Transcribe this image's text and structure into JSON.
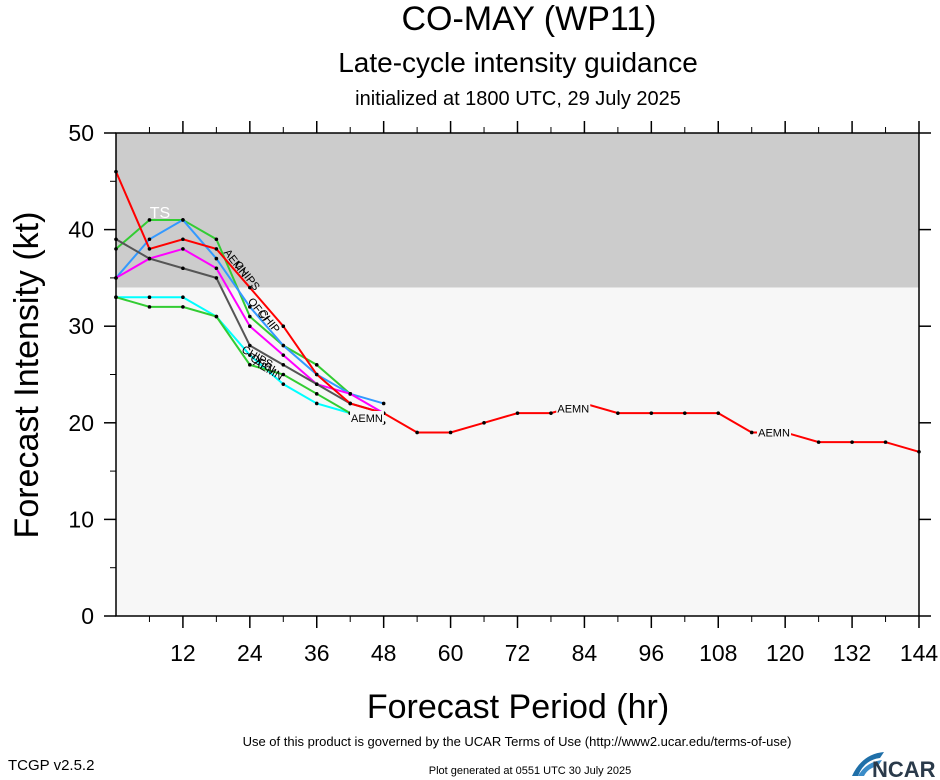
{
  "colors": {
    "ts_band": "#cccccc",
    "below_band": "#f7f7f7",
    "AEMN": "#ff0000",
    "green": "#33cc33",
    "blue": "#3399ff",
    "darkred": "#cc0000",
    "magenta": "#ff00ff",
    "gray": "#555555",
    "cyan": "#00ffff",
    "violet": "#cc88ff"
  },
  "chart_data": {
    "type": "line",
    "title": "CO-MAY (WP11)",
    "subtitle": "Late-cycle intensity guidance",
    "init_text": "initialized at 1800 UTC, 29 July 2025",
    "xlabel": "Forecast Period (hr)",
    "ylabel": "Forecast Intensity (kt)",
    "xlim": [
      0,
      144
    ],
    "ylim": [
      0,
      50
    ],
    "xticks": [
      12,
      24,
      36,
      48,
      60,
      72,
      84,
      96,
      108,
      120,
      132,
      144
    ],
    "yticks": [
      0,
      10,
      20,
      30,
      40,
      50
    ],
    "ts_threshold": 34,
    "ts_label": "TS",
    "series": [
      {
        "name": "AEMN",
        "color_key": "AEMN",
        "x": [
          0,
          6,
          12,
          18,
          24,
          30,
          36,
          42,
          48,
          54,
          60,
          66,
          72,
          78,
          84,
          90,
          96,
          102,
          108,
          114,
          120,
          126,
          132,
          138,
          144
        ],
        "y": [
          46,
          38,
          39,
          38,
          34,
          30,
          25,
          22,
          21,
          19,
          19,
          20,
          21,
          21,
          22,
          21,
          21,
          21,
          21,
          19,
          19,
          18,
          18,
          18,
          17
        ],
        "labels": [
          {
            "text": "AEMN",
            "x": 45,
            "y": 20.5
          },
          {
            "text": "AEMN",
            "x": 82,
            "y": 21.5
          },
          {
            "text": "AEMN",
            "x": 118,
            "y": 19
          }
        ]
      },
      {
        "name": "",
        "color_key": "green",
        "x": [
          0,
          6,
          12,
          18,
          24,
          30,
          36,
          42
        ],
        "y": [
          38,
          41,
          41,
          39,
          31,
          28,
          26,
          23
        ],
        "labels": []
      },
      {
        "name": "",
        "color_key": "blue",
        "x": [
          0,
          6,
          12,
          18,
          24,
          30,
          36,
          42,
          48
        ],
        "y": [
          35,
          39,
          41,
          37,
          32,
          28,
          25,
          23,
          22
        ],
        "labels": []
      },
      {
        "name": "",
        "color_key": "magenta",
        "x": [
          0,
          6,
          12,
          18,
          24,
          30,
          36,
          42,
          48
        ],
        "y": [
          35,
          37,
          38,
          36,
          30,
          27,
          24,
          23,
          21
        ],
        "labels": []
      },
      {
        "name": "",
        "color_key": "gray",
        "x": [
          0,
          6,
          12,
          18,
          24,
          30,
          36,
          42,
          48
        ],
        "y": [
          39,
          37,
          36,
          35,
          28,
          26,
          24,
          22,
          21
        ],
        "labels": []
      },
      {
        "name": "",
        "color_key": "cyan",
        "x": [
          0,
          6,
          12,
          18,
          24,
          30,
          36,
          42,
          48
        ],
        "y": [
          33,
          33,
          33,
          31,
          27,
          24,
          22,
          21,
          20
        ],
        "labels": []
      },
      {
        "name": "",
        "color_key": "green",
        "x": [
          0,
          6,
          12,
          18,
          24,
          30,
          36,
          42
        ],
        "y": [
          33,
          32,
          32,
          31,
          26,
          25,
          23,
          21
        ],
        "labels": []
      }
    ],
    "side_labels": [
      {
        "text": "AEMN",
        "x": 21,
        "y": 36.3,
        "rot": 52
      },
      {
        "text": "CHIPS",
        "x": 23,
        "y": 35.0,
        "rot": 52
      },
      {
        "text": "OFCI",
        "x": 25,
        "y": 31.5,
        "rot": 52
      },
      {
        "text": "CHIP",
        "x": 27,
        "y": 30.3,
        "rot": 52
      },
      {
        "text": "CHIPS",
        "x": 25,
        "y": 26.5,
        "rot": 30
      },
      {
        "text": "OFCI",
        "x": 26,
        "y": 25.8,
        "rot": 30
      },
      {
        "text": "AEMN",
        "x": 27,
        "y": 25.2,
        "rot": 30
      }
    ]
  },
  "footer": {
    "terms": "Use of this product is governed by the UCAR Terms of Use (http://www2.ucar.edu/terms-of-use)",
    "generated": "Plot generated at 0551 UTC   30 July 2025",
    "version": "TCGP v2.5.2",
    "logo_text": "NCAR"
  }
}
